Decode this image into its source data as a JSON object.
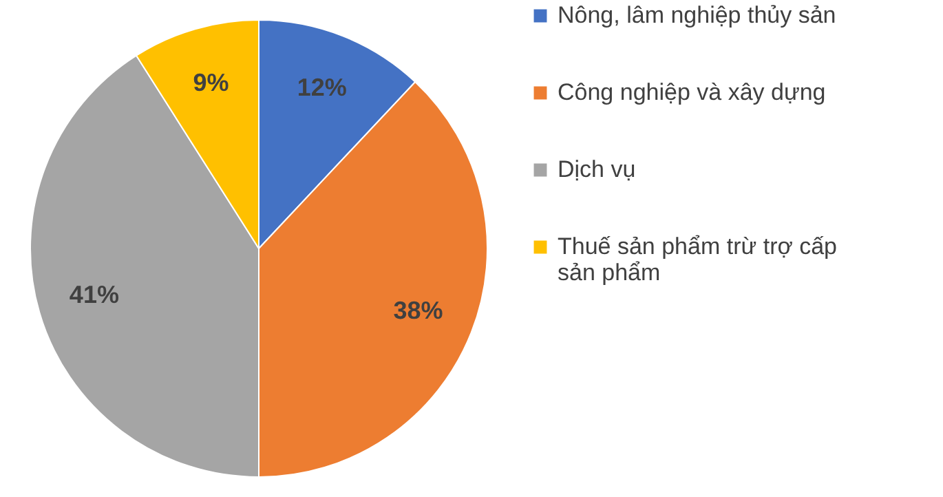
{
  "chart_data": {
    "type": "pie",
    "categories": [
      "Nông, lâm nghiệp thủy sản",
      "Công nghiệp và xây dựng",
      "Dịch vụ",
      "Thuế sản phẩm trừ trợ cấp sản phẩm"
    ],
    "values": [
      12,
      38,
      41,
      9
    ],
    "colors": [
      "#4472c4",
      "#ed7d31",
      "#a5a5a5",
      "#ffc000"
    ],
    "value_labels": [
      "12%",
      "38%",
      "41%",
      "9%"
    ],
    "legend": "right"
  }
}
